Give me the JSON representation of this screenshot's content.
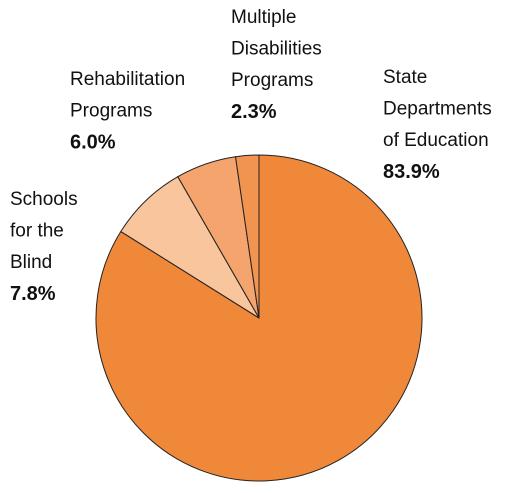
{
  "chart_data": {
    "type": "pie",
    "categories": [
      [
        "State",
        "Departments",
        "of Education"
      ],
      [
        "Schools",
        "for the",
        "Blind"
      ],
      [
        "Rehabilitation",
        "Programs"
      ],
      [
        "Multiple",
        "Disabilities",
        "Programs"
      ]
    ],
    "values": [
      83.9,
      7.8,
      6.0,
      2.3
    ],
    "value_labels": [
      "83.9%",
      "7.8%",
      "6.0%",
      "2.3%"
    ],
    "colors": [
      "#f0883a",
      "#f8c59d",
      "#f4a46c",
      "#f19450"
    ]
  }
}
